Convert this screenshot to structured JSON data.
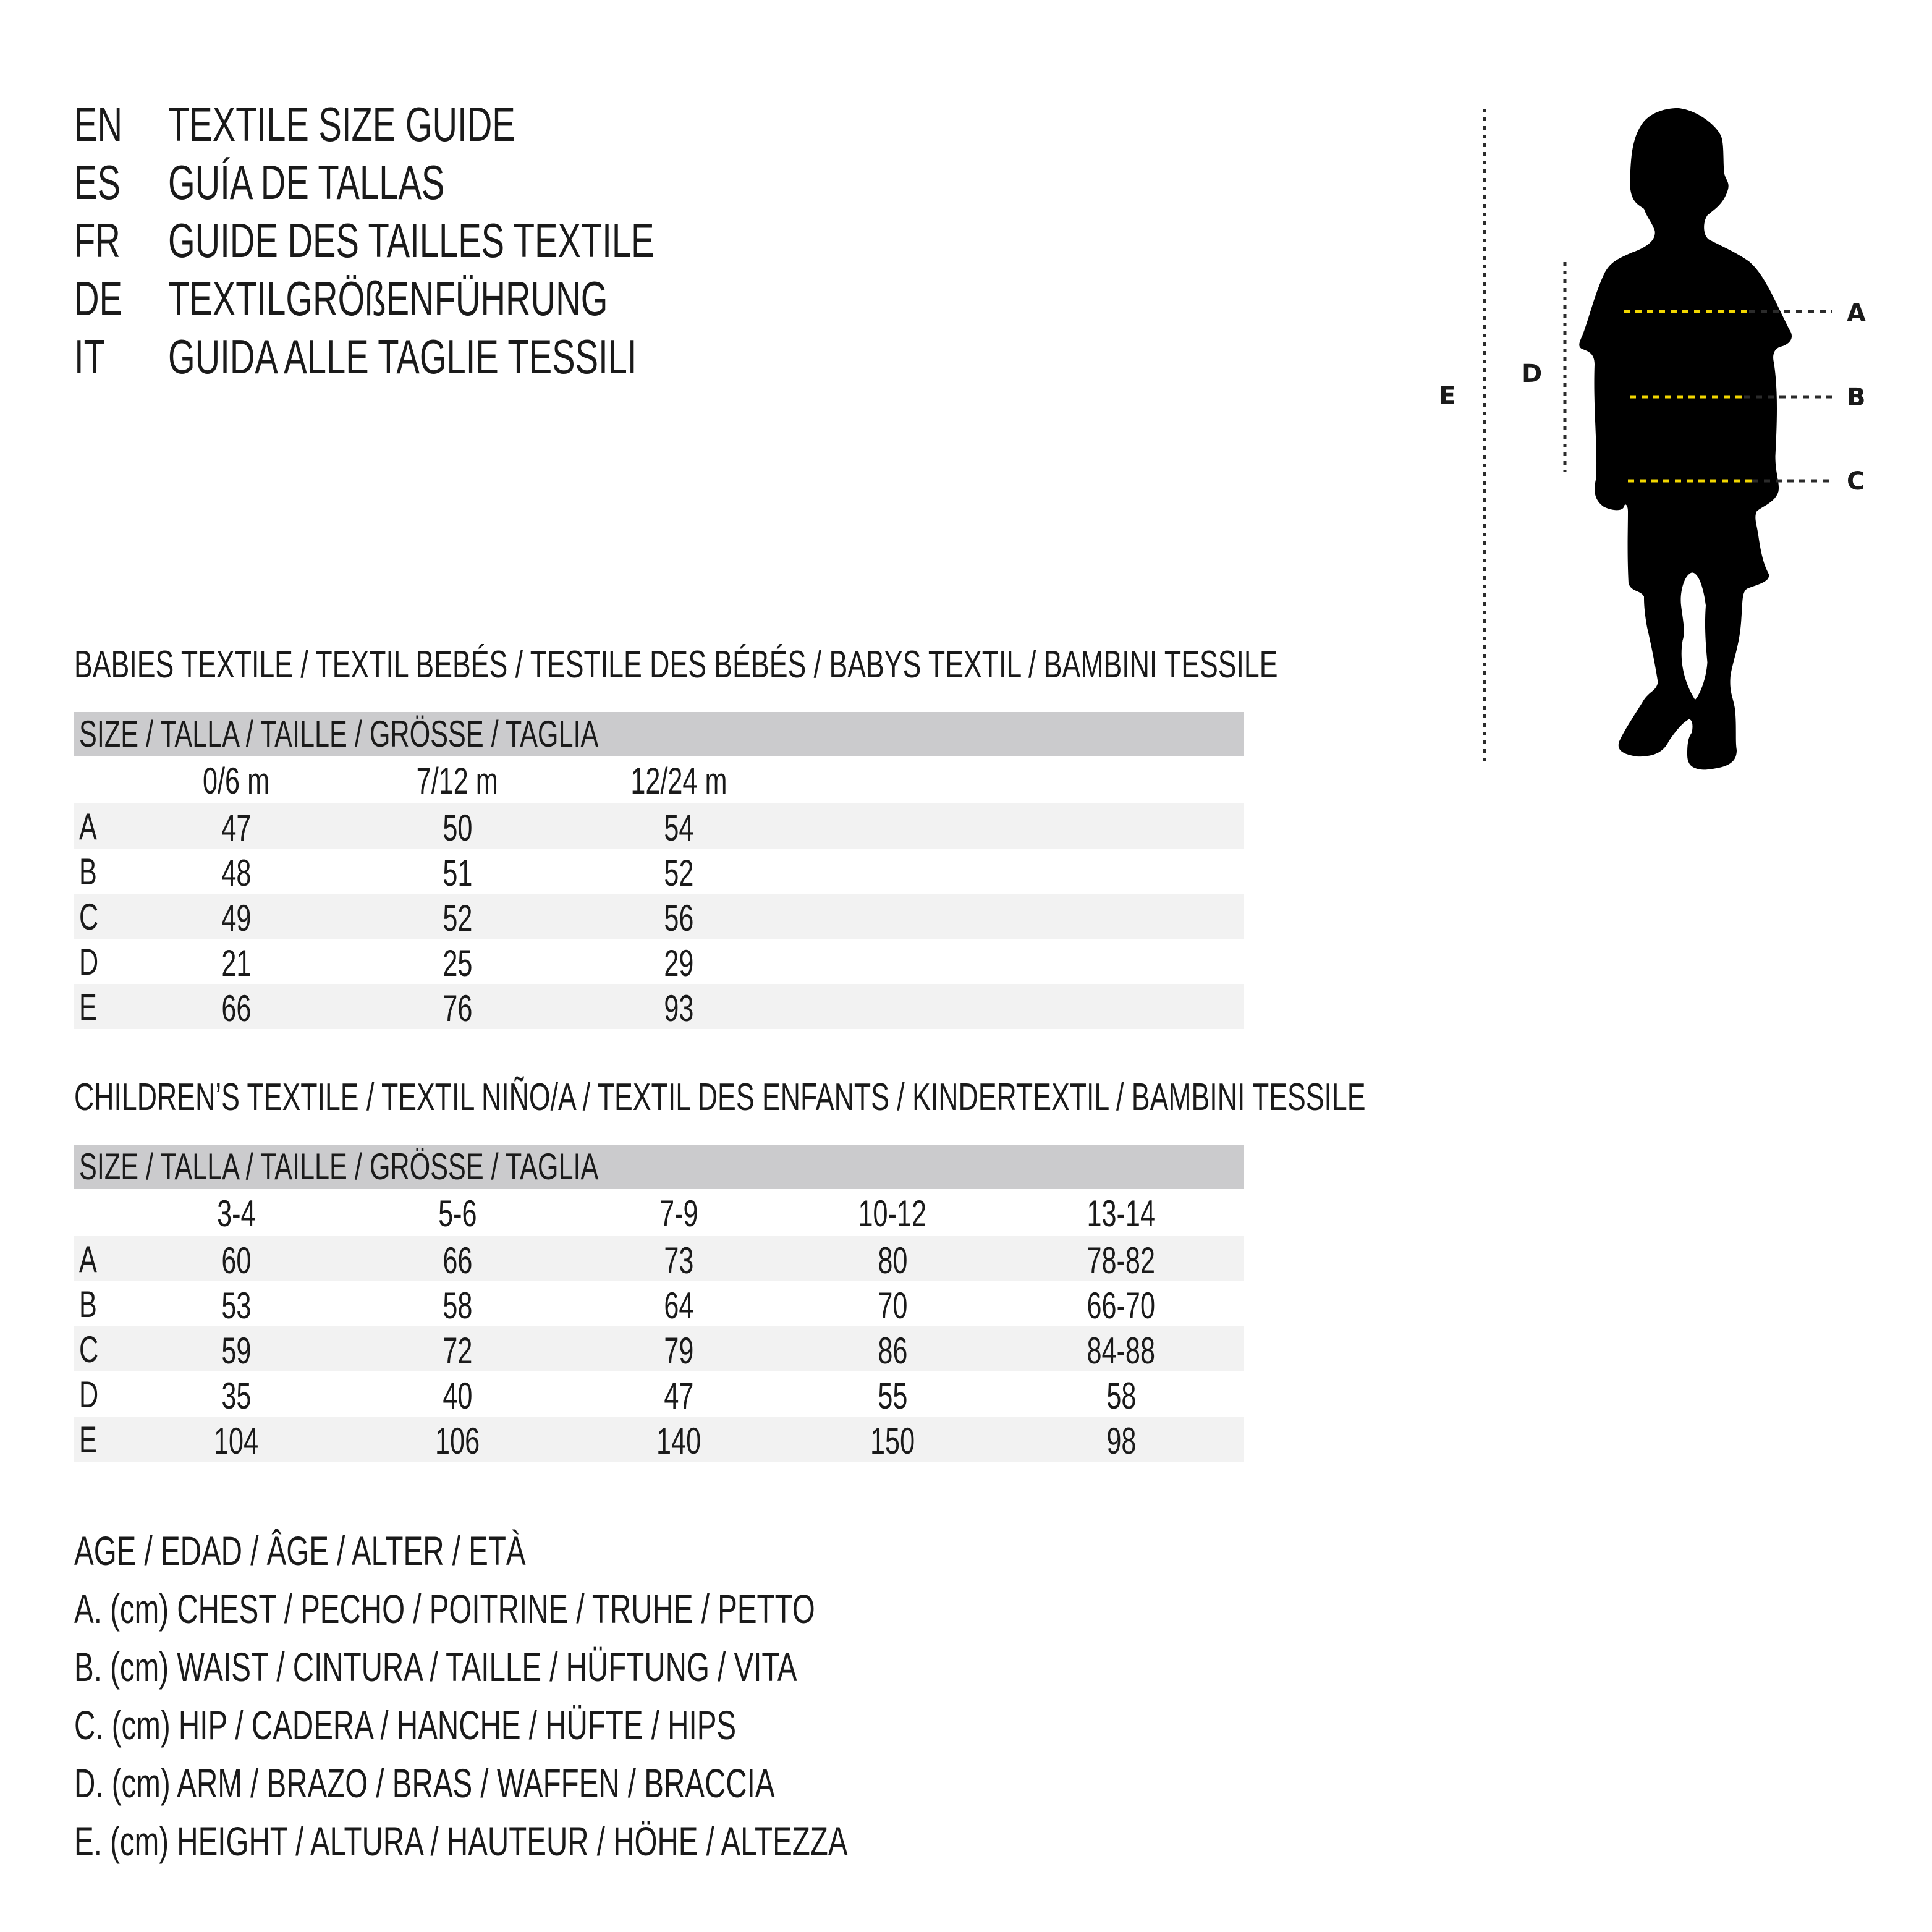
{
  "header": {
    "lines": [
      {
        "code": "EN",
        "text": "TEXTILE SIZE GUIDE"
      },
      {
        "code": "ES",
        "text": "GUÍA DE TALLAS"
      },
      {
        "code": "FR",
        "text": "GUIDE DES TAILLES TEXTILE"
      },
      {
        "code": "DE",
        "text": "TEXTILGRÖßENFÜHRUNG"
      },
      {
        "code": "IT",
        "text": "GUIDA ALLE TAGLIE TESSILI"
      }
    ]
  },
  "figure": {
    "labels": {
      "A": "A",
      "B": "B",
      "C": "C",
      "D": "D",
      "E": "E"
    },
    "colors": {
      "silhouette": "#000000",
      "measure_line": "#f2d600",
      "guide_line": "#2b2b2b"
    }
  },
  "babies": {
    "title": "BABIES TEXTILE / TEXTIL BEBÉS / TESTILE DES BÉBÉS / BABYS TEXTIL / BAMBINI TESSILE",
    "size_header": "SIZE / TALLA / TAILLE / GRÖSSE / TAGLIA",
    "columns": [
      "0/6 m",
      "7/12 m",
      "12/24 m"
    ],
    "rows": [
      {
        "label": "A",
        "values": [
          "47",
          "50",
          "54"
        ]
      },
      {
        "label": "B",
        "values": [
          "48",
          "51",
          "52"
        ]
      },
      {
        "label": "C",
        "values": [
          "49",
          "52",
          "56"
        ]
      },
      {
        "label": "D",
        "values": [
          "21",
          "25",
          "29"
        ]
      },
      {
        "label": "E",
        "values": [
          "66",
          "76",
          "93"
        ]
      }
    ]
  },
  "children": {
    "title": "CHILDREN’S TEXTILE / TEXTIL NIÑO/A / TEXTIL DES ENFANTS / KINDERTEXTIL / BAMBINI TESSILE",
    "size_header": "SIZE / TALLA / TAILLE / GRÖSSE / TAGLIA",
    "columns": [
      "3-4",
      "5-6",
      "7-9",
      "10-12",
      "13-14"
    ],
    "rows": [
      {
        "label": "A",
        "values": [
          "60",
          "66",
          "73",
          "80",
          "78-82"
        ]
      },
      {
        "label": "B",
        "values": [
          "53",
          "58",
          "64",
          "70",
          "66-70"
        ]
      },
      {
        "label": "C",
        "values": [
          "59",
          "72",
          "79",
          "86",
          "84-88"
        ]
      },
      {
        "label": "D",
        "values": [
          "35",
          "40",
          "47",
          "55",
          "58"
        ]
      },
      {
        "label": "E",
        "values": [
          "104",
          "106",
          "140",
          "150",
          "98"
        ]
      }
    ]
  },
  "legend": [
    "AGE / EDAD / ÂGE / ALTER / ETÀ",
    "A. (cm) CHEST / PECHO / POITRINE / TRUHE / PETTO",
    "B. (cm) WAIST / CINTURA / TAILLE / HÜFTUNG / VITA",
    "C. (cm) HIP / CADERA / HANCHE / HÜFTE / HIPS",
    "D. (cm) ARM / BRAZO / BRAS / WAFFEN / BRACCIA",
    "E. (cm) HEIGHT / ALTURA / HAUTEUR / HÖHE / ALTEZZA"
  ]
}
